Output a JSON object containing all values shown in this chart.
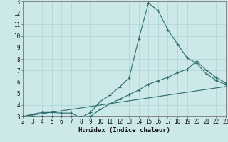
{
  "title": "",
  "xlabel": "Humidex (Indice chaleur)",
  "bg_color": "#cce8e8",
  "grid_color": "#b0d8d8",
  "line_color": "#2a6b6b",
  "xlim": [
    2,
    23
  ],
  "ylim": [
    3,
    13
  ],
  "xticks": [
    2,
    3,
    4,
    5,
    6,
    7,
    8,
    9,
    10,
    11,
    12,
    13,
    14,
    15,
    16,
    17,
    18,
    19,
    20,
    21,
    22,
    23
  ],
  "yticks": [
    3,
    4,
    5,
    6,
    7,
    8,
    9,
    10,
    11,
    12,
    13
  ],
  "line1_x": [
    2,
    3,
    4,
    5,
    6,
    7,
    8,
    9,
    10,
    11,
    12,
    13,
    14,
    15,
    16,
    17,
    18,
    19,
    20,
    21,
    22,
    23
  ],
  "line1_y": [
    3.0,
    3.2,
    3.35,
    3.35,
    3.3,
    3.3,
    2.9,
    3.35,
    4.3,
    4.85,
    5.55,
    6.35,
    9.75,
    12.85,
    12.2,
    10.55,
    9.3,
    8.1,
    7.6,
    6.7,
    6.15,
    5.75
  ],
  "line2_x": [
    2,
    3,
    4,
    5,
    6,
    7,
    8,
    9,
    10,
    11,
    12,
    13,
    14,
    15,
    16,
    17,
    18,
    19,
    20,
    21,
    22,
    23
  ],
  "line2_y": [
    3.0,
    3.0,
    3.0,
    3.0,
    3.0,
    3.0,
    3.0,
    3.0,
    3.6,
    4.1,
    4.5,
    4.9,
    5.3,
    5.8,
    6.1,
    6.4,
    6.8,
    7.1,
    7.8,
    7.0,
    6.4,
    5.9
  ],
  "line3_x": [
    2,
    23
  ],
  "line3_y": [
    3.0,
    5.6
  ]
}
